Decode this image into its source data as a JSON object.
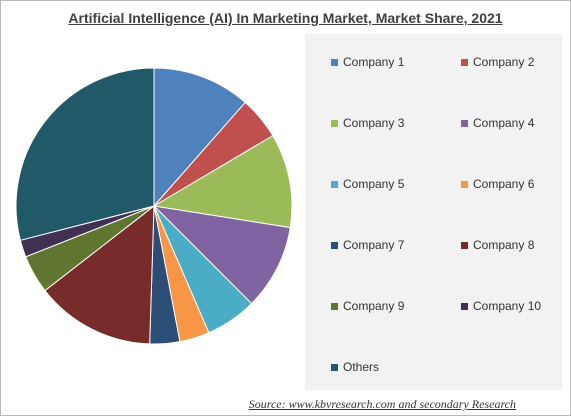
{
  "chart_data": {
    "type": "pie",
    "title": "Artificial Intelligence (AI) In Marketing Market, Market Share, 2021",
    "categories": [
      "Company 1",
      "Company 2",
      "Company 3",
      "Company 4",
      "Company 5",
      "Company 6",
      "Company 7",
      "Company 8",
      "Company 9",
      "Company 10",
      "Others"
    ],
    "values": [
      11.5,
      5.0,
      11.0,
      10.0,
      6.0,
      3.5,
      3.5,
      14.0,
      4.5,
      2.0,
      29.0
    ],
    "colors": [
      "#4f81bd",
      "#c0504d",
      "#9bbb59",
      "#8064a2",
      "#4bacc6",
      "#f79646",
      "#2c4d75",
      "#772c2a",
      "#5f7530",
      "#403152",
      "#215968"
    ],
    "legend_position": "right"
  },
  "source_text": "Source:  www.kbvresearch.com   and secondary Research"
}
